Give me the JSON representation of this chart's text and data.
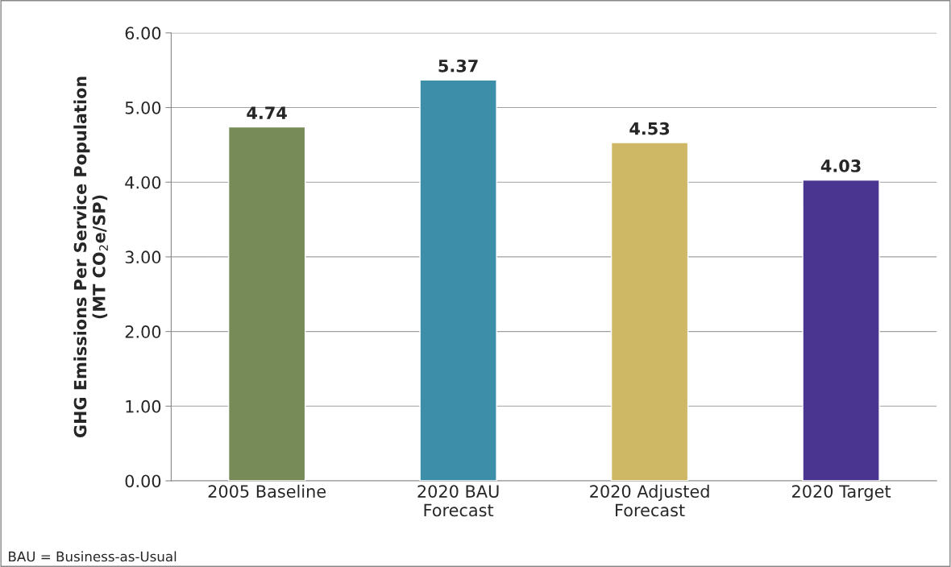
{
  "chart_data": {
    "type": "bar",
    "categories": [
      "2005 Baseline",
      "2020 BAU\nForecast",
      "2020 Adjusted\nForecast",
      "2020 Target"
    ],
    "values": [
      4.74,
      5.37,
      4.53,
      4.03
    ],
    "colors": [
      "#768b57",
      "#3d8ea9",
      "#cfb865",
      "#4a3591"
    ],
    "ylabel": "GHG Emissions Per Service Population\n(MT CO$_{2}$e/SP)",
    "ylim": [
      0,
      6
    ],
    "yticks": [
      {
        "value": 0,
        "label": "0.00"
      },
      {
        "value": 1,
        "label": "1.00"
      },
      {
        "value": 2,
        "label": "2.00"
      },
      {
        "value": 3,
        "label": "3.00"
      },
      {
        "value": 4,
        "label": "4.00"
      },
      {
        "value": 5,
        "label": "5.00"
      },
      {
        "value": 6,
        "label": "6.00"
      }
    ],
    "grid": "y",
    "data_labels": true,
    "annotations": [
      "BAU = Business-as-Usual"
    ]
  }
}
